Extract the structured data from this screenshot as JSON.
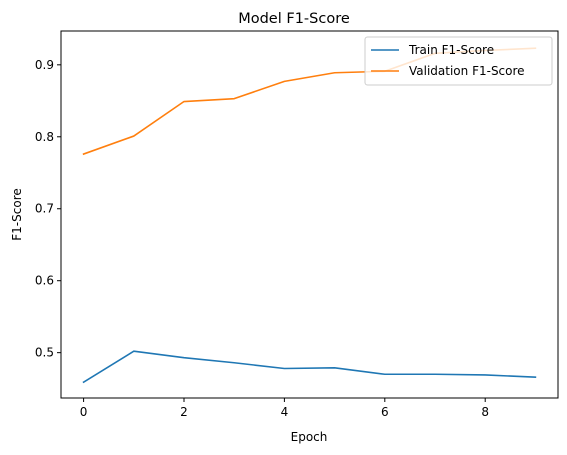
{
  "chart_data": {
    "type": "line",
    "title": "Model F1-Score",
    "xlabel": "Epoch",
    "ylabel": "F1-Score",
    "xlim": [
      -0.45,
      9.45
    ],
    "ylim": [
      0.437,
      0.947
    ],
    "xticks": [
      0,
      2,
      4,
      6,
      8
    ],
    "xtick_labels": [
      "0",
      "2",
      "4",
      "6",
      "8"
    ],
    "yticks": [
      0.5,
      0.6,
      0.7,
      0.8,
      0.9
    ],
    "ytick_labels": [
      "0.5",
      "0.6",
      "0.7",
      "0.8",
      "0.9"
    ],
    "grid": false,
    "legend_position": "top-right",
    "x": [
      0,
      1,
      2,
      3,
      4,
      5,
      6,
      7,
      8,
      9
    ],
    "series": [
      {
        "name": "Train F1-Score",
        "color": "#1f77b4",
        "values": [
          0.459,
          0.502,
          0.493,
          0.486,
          0.478,
          0.479,
          0.47,
          0.47,
          0.469,
          0.466
        ]
      },
      {
        "name": "Validation F1-Score",
        "color": "#ff7f0e",
        "values": [
          0.776,
          0.801,
          0.849,
          0.853,
          0.877,
          0.889,
          0.891,
          0.916,
          0.92,
          0.923
        ]
      }
    ]
  }
}
